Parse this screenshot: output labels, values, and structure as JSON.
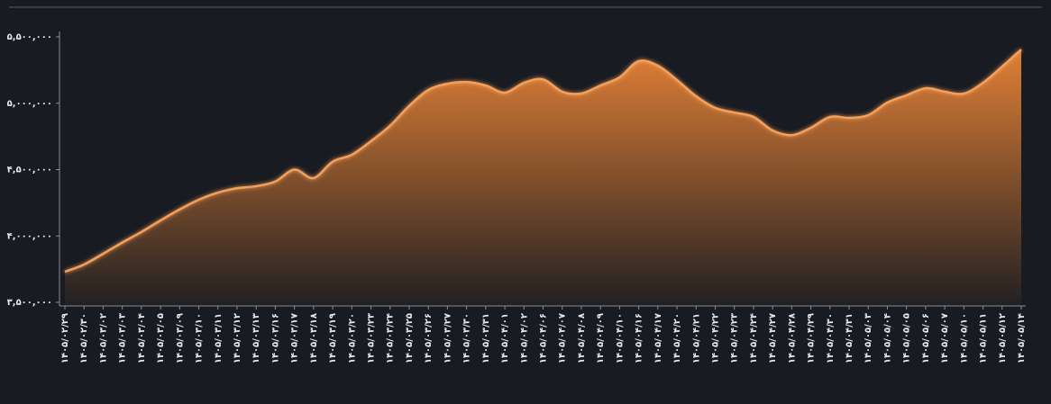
{
  "chart_data": {
    "type": "area",
    "categories": [
      "۱۴۰۵/۰۲/۲۹",
      "۱۴۰۵/۰۲/۳۰",
      "۱۴۰۵/۰۳/۰۲",
      "۱۴۰۵/۰۳/۰۳",
      "۱۴۰۵/۰۳/۰۴",
      "۱۴۰۵/۰۳/۰۵",
      "۱۴۰۵/۰۳/۰۹",
      "۱۴۰۵/۰۳/۱۰",
      "۱۴۰۵/۰۳/۱۱",
      "۱۴۰۵/۰۳/۱۲",
      "۱۴۰۵/۰۳/۱۳",
      "۱۴۰۵/۰۳/۱۶",
      "۱۴۰۵/۰۳/۱۷",
      "۱۴۰۵/۰۳/۱۸",
      "۱۴۰۵/۰۳/۱۹",
      "۱۴۰۵/۰۳/۲۰",
      "۱۴۰۵/۰۳/۲۳",
      "۱۴۰۵/۰۳/۲۴",
      "۱۴۰۵/۰۳/۲۵",
      "۱۴۰۵/۰۳/۲۶",
      "۱۴۰۵/۰۳/۲۷",
      "۱۴۰۵/۰۳/۳۰",
      "۱۴۰۵/۰۳/۳۱",
      "۱۴۰۵/۰۴/۰۱",
      "۱۴۰۵/۰۴/۰۲",
      "۱۴۰۵/۰۴/۰۶",
      "۱۴۰۵/۰۴/۰۷",
      "۱۴۰۵/۰۴/۰۸",
      "۱۴۰۵/۰۴/۰۹",
      "۱۴۰۵/۰۴/۱۰",
      "۱۴۰۵/۰۴/۱۶",
      "۱۴۰۵/۰۴/۱۷",
      "۱۴۰۵/۰۴/۲۰",
      "۱۴۰۵/۰۴/۲۱",
      "۱۴۰۵/۰۴/۲۲",
      "۱۴۰۵/۰۴/۲۳",
      "۱۴۰۵/۰۴/۲۴",
      "۱۴۰۵/۰۴/۲۷",
      "۱۴۰۵/۰۴/۲۸",
      "۱۴۰۵/۰۴/۲۹",
      "۱۴۰۵/۰۴/۳۰",
      "۱۴۰۵/۰۴/۳۱",
      "۱۴۰۵/۰۵/۰۳",
      "۱۴۰۵/۰۵/۰۴",
      "۱۴۰۵/۰۵/۰۵",
      "۱۴۰۵/۰۵/۰۶",
      "۱۴۰۵/۰۵/۰۷",
      "۱۴۰۵/۰۵/۱۰",
      "۱۴۰۵/۰۵/۱۱",
      "۱۴۰۵/۰۵/۱۲",
      "۱۴۰۵/۰۵/۱۴"
    ],
    "values": [
      3730000,
      3785000,
      3866000,
      3950000,
      4030000,
      4117000,
      4200000,
      4273000,
      4327000,
      4360000,
      4375000,
      4410000,
      4500000,
      4436000,
      4560000,
      4612000,
      4714000,
      4830000,
      4980000,
      5100000,
      5147000,
      5160000,
      5134000,
      5080000,
      5154000,
      5180000,
      5087000,
      5073000,
      5134000,
      5195000,
      5317000,
      5283000,
      5175000,
      5053000,
      4965000,
      4930000,
      4897000,
      4795000,
      4760000,
      4815000,
      4897000,
      4890000,
      4910000,
      5005000,
      5060000,
      5113000,
      5087000,
      5073000,
      5154000,
      5276000,
      5405000
    ],
    "color": "#f5a05a",
    "ylim": [
      3500000,
      5500000
    ],
    "yticks": [
      {
        "value": 3500000,
        "label": "۳,۵۰۰,۰۰۰"
      },
      {
        "value": 4000000,
        "label": "۴,۰۰۰,۰۰۰"
      },
      {
        "value": 4500000,
        "label": "۴,۵۰۰,۰۰۰"
      },
      {
        "value": 5000000,
        "label": "۵,۰۰۰,۰۰۰"
      },
      {
        "value": 5500000,
        "label": "۵,۵۰۰,۰۰۰"
      }
    ]
  }
}
